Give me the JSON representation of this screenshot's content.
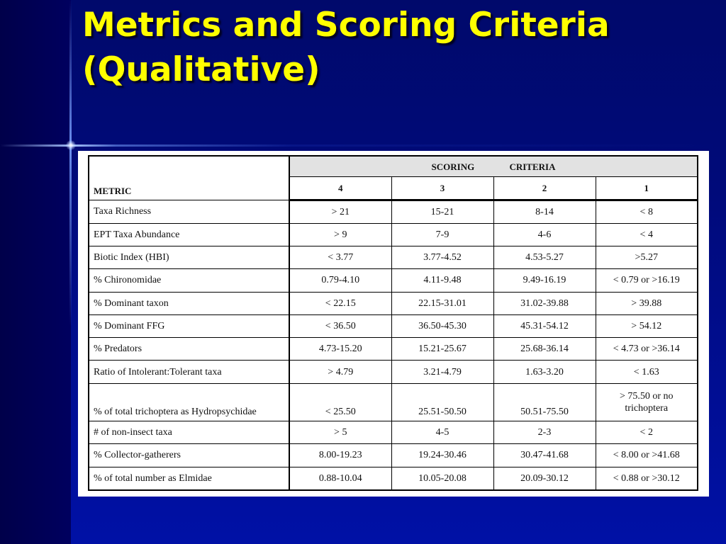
{
  "slide": {
    "title_lines": [
      "Metrics and Scoring Criteria",
      "(Qualitative)"
    ]
  },
  "table": {
    "metric_header": "METRIC",
    "scoring_header": [
      "SCORING",
      "CRITERIA"
    ],
    "score_columns": [
      "4",
      "3",
      "2",
      "1"
    ],
    "rows": [
      {
        "metric": "Taxa Richness",
        "values": [
          "> 21",
          "15-21",
          "8-14",
          "< 8"
        ]
      },
      {
        "metric": "EPT Taxa Abundance",
        "values": [
          "> 9",
          "7-9",
          "4-6",
          "< 4"
        ]
      },
      {
        "metric": "Biotic Index (HBI)",
        "values": [
          "< 3.77",
          "3.77-4.52",
          "4.53-5.27",
          ">5.27"
        ]
      },
      {
        "metric": "% Chironomidae",
        "values": [
          "0.79-4.10",
          "4.11-9.48",
          "9.49-16.19",
          "< 0.79 or >16.19"
        ]
      },
      {
        "metric": "% Dominant taxon",
        "values": [
          "< 22.15",
          "22.15-31.01",
          "31.02-39.88",
          "> 39.88"
        ]
      },
      {
        "metric": "% Dominant FFG",
        "values": [
          "< 36.50",
          "36.50-45.30",
          "45.31-54.12",
          "> 54.12"
        ]
      },
      {
        "metric": "% Predators",
        "values": [
          "4.73-15.20",
          "15.21-25.67",
          "25.68-36.14",
          "< 4.73 or >36.14"
        ]
      },
      {
        "metric": "Ratio of Intolerant:Tolerant taxa",
        "values": [
          "> 4.79",
          "3.21-4.79",
          "1.63-3.20",
          "< 1.63"
        ]
      },
      {
        "metric": "% of total trichoptera as Hydropsychidae",
        "values": [
          "< 25.50",
          "25.51-50.50",
          "50.51-75.50",
          "> 75.50 or no trichoptera"
        ]
      },
      {
        "metric": "# of non-insect taxa",
        "values": [
          "> 5",
          "4-5",
          "2-3",
          "< 2"
        ]
      },
      {
        "metric": "% Collector-gatherers",
        "values": [
          "8.00-19.23",
          "19.24-30.46",
          "30.47-41.68",
          "< 8.00 or >41.68"
        ]
      },
      {
        "metric": "% of total number as Elmidae",
        "values": [
          "0.88-10.04",
          "10.05-20.08",
          "20.09-30.12",
          "< 0.88 or >30.12"
        ]
      }
    ]
  },
  "colors": {
    "background": "#000a7a",
    "title": "#ffff00",
    "header_fill": "#e2e2e2"
  }
}
